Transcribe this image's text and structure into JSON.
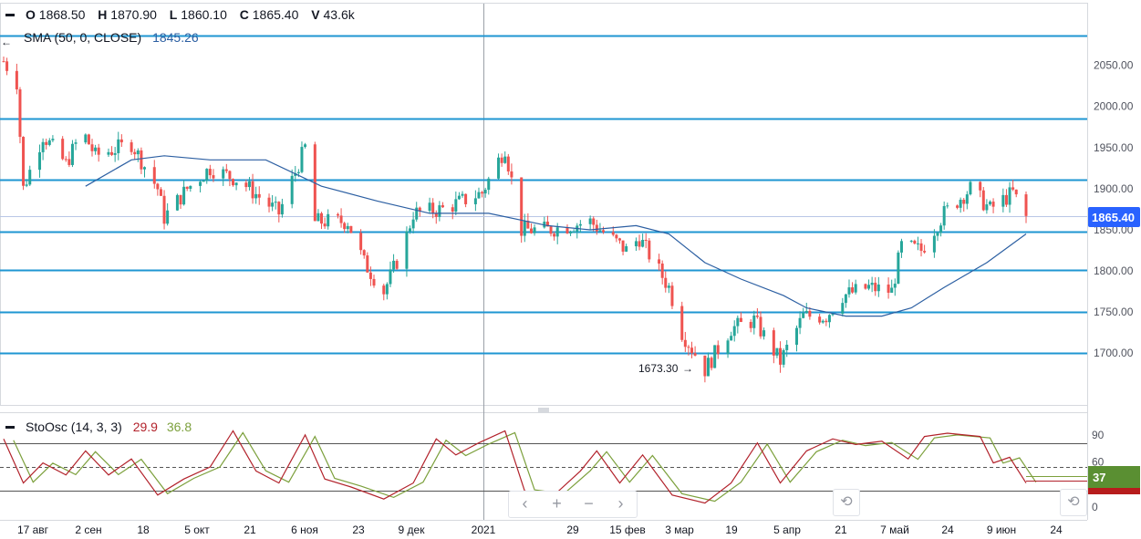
{
  "legend": {
    "ohlc": [
      {
        "key": "O",
        "value": "1868.50"
      },
      {
        "key": "H",
        "value": "1870.90"
      },
      {
        "key": "L",
        "value": "1860.10"
      },
      {
        "key": "C",
        "value": "1865.40"
      },
      {
        "key": "V",
        "value": "43.6k"
      }
    ],
    "sma_label": "SMA (50, 0, CLOSE)",
    "sma_value": "1845.26",
    "sto_label": "StoOsc (14, 3, 3)",
    "sto_k": "29.9",
    "sto_d": "36.8"
  },
  "price_axis": {
    "ticks": [
      "2050.00",
      "2000.00",
      "1950.00",
      "1900.00",
      "1850.00",
      "1800.00",
      "1750.00",
      "1700.00"
    ],
    "last_price": "1865.40"
  },
  "osc_axis": {
    "ticks": [
      "90",
      "60",
      "0"
    ],
    "last_value": "37"
  },
  "time_axis": {
    "labels": [
      "17 авг",
      "2 сен",
      "18",
      "5 окт",
      "21",
      "6 ноя",
      "23",
      "9 дек",
      "2021",
      "29",
      "15 фев",
      "3 мар",
      "19",
      "5 апр",
      "21",
      "7 май",
      "24",
      "9 июн",
      "24"
    ]
  },
  "annotations": {
    "low_label": "1673.30"
  },
  "navigation": {
    "prev": "‹",
    "zoom_in": "+",
    "zoom_out": "−",
    "next": "›",
    "reset_icon": "⟲"
  },
  "chart_data": {
    "type": "candlestick",
    "instrument_ohlc_last": {
      "open": 1868.5,
      "high": 1870.9,
      "low": 1860.1,
      "close": 1865.4,
      "volume": "43.6k"
    },
    "horizontal_levels": [
      2086,
      1985,
      1911,
      1848,
      1801,
      1750,
      1700
    ],
    "ylim": [
      1637,
      2125
    ],
    "close_path": [
      {
        "date": "2020-08-06",
        "close": 2055
      },
      {
        "date": "2020-08-10",
        "close": 2030
      },
      {
        "date": "2020-08-12",
        "close": 1900
      },
      {
        "date": "2020-08-18",
        "close": 1965
      },
      {
        "date": "2020-08-25",
        "close": 1930
      },
      {
        "date": "2020-08-30",
        "close": 1970
      },
      {
        "date": "2020-09-03",
        "close": 1940
      },
      {
        "date": "2020-09-14",
        "close": 1955
      },
      {
        "date": "2020-09-22",
        "close": 1900
      },
      {
        "date": "2020-09-24",
        "close": 1865
      },
      {
        "date": "2020-10-01",
        "close": 1900
      },
      {
        "date": "2020-10-08",
        "close": 1925
      },
      {
        "date": "2020-10-17",
        "close": 1910
      },
      {
        "date": "2020-10-29",
        "close": 1870
      },
      {
        "date": "2020-11-06",
        "close": 1950
      },
      {
        "date": "2020-11-09",
        "close": 1860
      },
      {
        "date": "2020-11-19",
        "close": 1860
      },
      {
        "date": "2020-11-24",
        "close": 1810
      },
      {
        "date": "2020-11-30",
        "close": 1775
      },
      {
        "date": "2020-12-06",
        "close": 1830
      },
      {
        "date": "2020-12-09",
        "close": 1870
      },
      {
        "date": "2020-12-18",
        "close": 1875
      },
      {
        "date": "2020-12-30",
        "close": 1895
      },
      {
        "date": "2021-01-06",
        "close": 1950
      },
      {
        "date": "2021-01-11",
        "close": 1850
      },
      {
        "date": "2021-01-19",
        "close": 1850
      },
      {
        "date": "2021-02-01",
        "close": 1860
      },
      {
        "date": "2021-02-12",
        "close": 1825
      },
      {
        "date": "2021-02-16",
        "close": 1840
      },
      {
        "date": "2021-02-25",
        "close": 1780
      },
      {
        "date": "2021-03-01",
        "close": 1725
      },
      {
        "date": "2021-03-08",
        "close": 1680
      },
      {
        "date": "2021-03-16",
        "close": 1730
      },
      {
        "date": "2021-03-23",
        "close": 1740
      },
      {
        "date": "2021-03-31",
        "close": 1690
      },
      {
        "date": "2021-04-07",
        "close": 1745
      },
      {
        "date": "2021-04-14",
        "close": 1745
      },
      {
        "date": "2021-04-19",
        "close": 1770
      },
      {
        "date": "2021-04-27",
        "close": 1780
      },
      {
        "date": "2021-05-04",
        "close": 1775
      },
      {
        "date": "2021-05-07",
        "close": 1830
      },
      {
        "date": "2021-05-13",
        "close": 1825
      },
      {
        "date": "2021-05-20",
        "close": 1870
      },
      {
        "date": "2021-05-28",
        "close": 1900
      },
      {
        "date": "2021-06-03",
        "close": 1875
      },
      {
        "date": "2021-06-10",
        "close": 1895
      },
      {
        "date": "2021-06-14",
        "close": 1865
      }
    ],
    "sma_50": [
      {
        "date": "2020-08-31",
        "value": 1903
      },
      {
        "date": "2020-09-14",
        "value": 1935
      },
      {
        "date": "2020-09-24",
        "value": 1940
      },
      {
        "date": "2020-10-08",
        "value": 1935
      },
      {
        "date": "2020-10-25",
        "value": 1935
      },
      {
        "date": "2020-11-11",
        "value": 1903
      },
      {
        "date": "2020-11-28",
        "value": 1885
      },
      {
        "date": "2020-12-14",
        "value": 1870
      },
      {
        "date": "2021-01-01",
        "value": 1870
      },
      {
        "date": "2021-01-19",
        "value": 1855
      },
      {
        "date": "2021-02-01",
        "value": 1850
      },
      {
        "date": "2021-02-15",
        "value": 1855
      },
      {
        "date": "2021-02-25",
        "value": 1845
      },
      {
        "date": "2021-03-08",
        "value": 1810
      },
      {
        "date": "2021-03-19",
        "value": 1790
      },
      {
        "date": "2021-04-01",
        "value": 1770
      },
      {
        "date": "2021-04-08",
        "value": 1755
      },
      {
        "date": "2021-04-20",
        "value": 1745
      },
      {
        "date": "2021-05-01",
        "value": 1745
      },
      {
        "date": "2021-05-10",
        "value": 1755
      },
      {
        "date": "2021-05-20",
        "value": 1780
      },
      {
        "date": "2021-06-02",
        "value": 1810
      },
      {
        "date": "2021-06-14",
        "value": 1845
      }
    ],
    "low_marker": {
      "date": "2021-03-08",
      "value": 1673.3
    },
    "stochastic": {
      "k_last": 29.9,
      "d_last": 36.8,
      "levels": [
        80,
        50,
        20
      ],
      "k_path": [
        {
          "date": "2020-08-06",
          "value": 85
        },
        {
          "date": "2020-08-12",
          "value": 30
        },
        {
          "date": "2020-08-18",
          "value": 55
        },
        {
          "date": "2020-08-25",
          "value": 40
        },
        {
          "date": "2020-08-31",
          "value": 70
        },
        {
          "date": "2020-09-07",
          "value": 40
        },
        {
          "date": "2020-09-14",
          "value": 60
        },
        {
          "date": "2020-09-22",
          "value": 15
        },
        {
          "date": "2020-09-30",
          "value": 35
        },
        {
          "date": "2020-10-08",
          "value": 50
        },
        {
          "date": "2020-10-15",
          "value": 95
        },
        {
          "date": "2020-10-22",
          "value": 45
        },
        {
          "date": "2020-10-29",
          "value": 30
        },
        {
          "date": "2020-11-06",
          "value": 90
        },
        {
          "date": "2020-11-12",
          "value": 35
        },
        {
          "date": "2020-11-20",
          "value": 25
        },
        {
          "date": "2020-11-30",
          "value": 10
        },
        {
          "date": "2020-12-09",
          "value": 30
        },
        {
          "date": "2020-12-16",
          "value": 85
        },
        {
          "date": "2020-12-22",
          "value": 65
        },
        {
          "date": "2020-12-29",
          "value": 80
        },
        {
          "date": "2021-01-06",
          "value": 95
        },
        {
          "date": "2021-01-12",
          "value": 20
        },
        {
          "date": "2021-01-21",
          "value": 15
        },
        {
          "date": "2021-01-29",
          "value": 45
        },
        {
          "date": "2021-02-03",
          "value": 70
        },
        {
          "date": "2021-02-10",
          "value": 30
        },
        {
          "date": "2021-02-17",
          "value": 65
        },
        {
          "date": "2021-02-26",
          "value": 15
        },
        {
          "date": "2021-03-08",
          "value": 5
        },
        {
          "date": "2021-03-16",
          "value": 30
        },
        {
          "date": "2021-03-24",
          "value": 80
        },
        {
          "date": "2021-03-31",
          "value": 30
        },
        {
          "date": "2021-04-08",
          "value": 70
        },
        {
          "date": "2021-04-16",
          "value": 85
        },
        {
          "date": "2021-04-23",
          "value": 78
        },
        {
          "date": "2021-05-01",
          "value": 82
        },
        {
          "date": "2021-05-09",
          "value": 60
        },
        {
          "date": "2021-05-14",
          "value": 88
        },
        {
          "date": "2021-05-21",
          "value": 92
        },
        {
          "date": "2021-05-31",
          "value": 88
        },
        {
          "date": "2021-06-04",
          "value": 55
        },
        {
          "date": "2021-06-09",
          "value": 62
        },
        {
          "date": "2021-06-14",
          "value": 30
        }
      ]
    }
  },
  "colors": {
    "bull": "#26a69a",
    "bear": "#ef5350",
    "level_line": "#1e96d2",
    "sma": "#2c5fa2",
    "sto_k": "#b2222b",
    "sto_d": "#7ca03c",
    "price_tag": "#2962ff",
    "osc_tag": "#5a8f32",
    "osc_tag_alt": "#b71c1c"
  }
}
